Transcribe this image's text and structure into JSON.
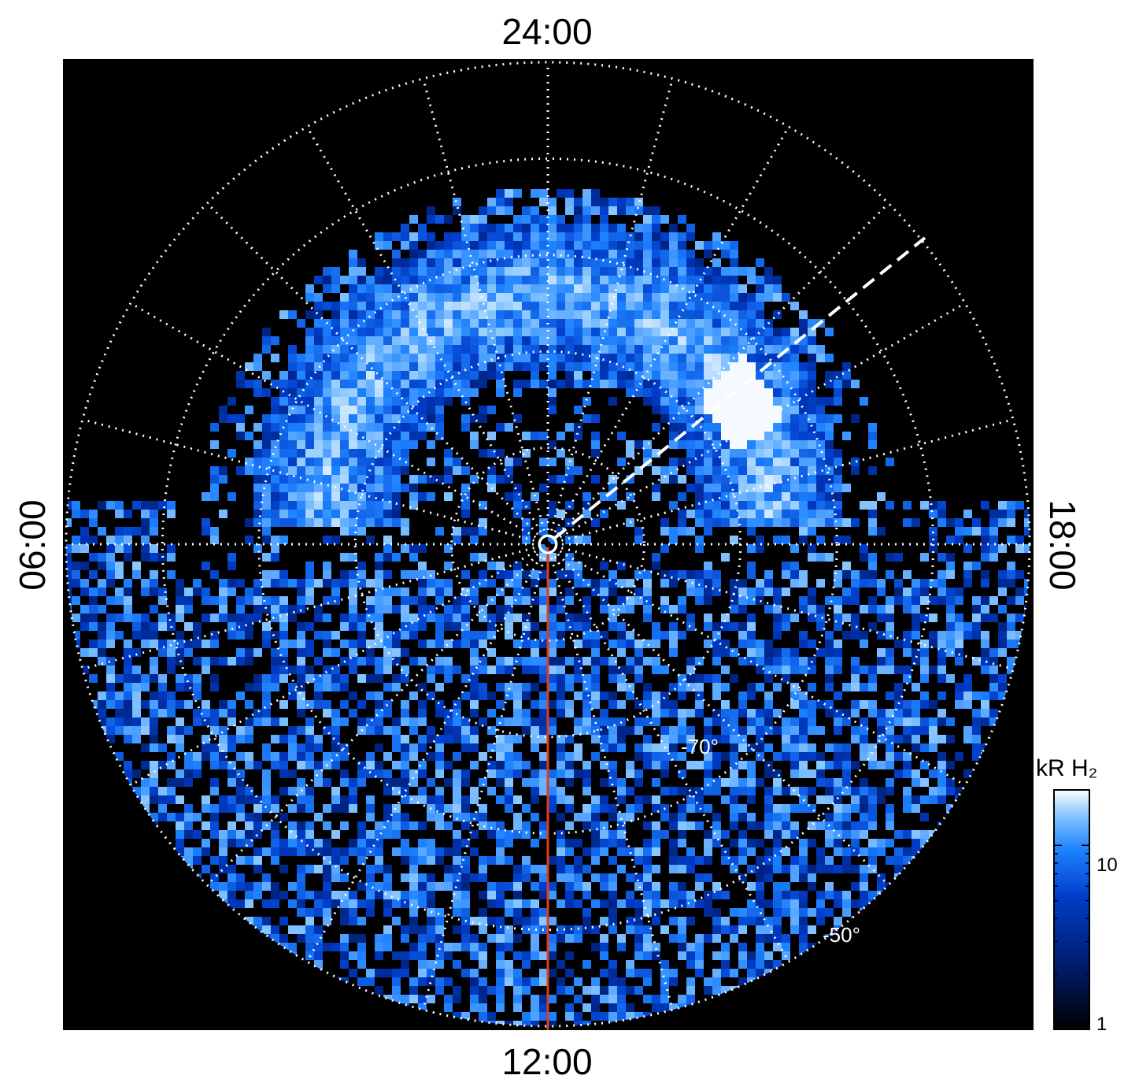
{
  "chart_data": {
    "type": "heatmap",
    "projection": "polar",
    "title": "",
    "background_color": "#000000",
    "local_time_labels": {
      "top": "24:00",
      "bottom": "12:00",
      "left": "06:00",
      "right": "18:00"
    },
    "latitude_labels": [
      {
        "text": "-70°",
        "latitude": -70
      },
      {
        "text": "-50°",
        "latitude": -50
      }
    ],
    "latitude_circles": [
      -80,
      -70,
      -60,
      -50,
      -40
    ],
    "local_time_meridian_step_hours": 1,
    "grid": "dotted white",
    "colorbar": {
      "title": "kR H₂",
      "scale": "log",
      "range": [
        1,
        20
      ],
      "ticks": [
        {
          "value": 1,
          "label": "1"
        },
        {
          "value": 10,
          "label": "10"
        }
      ],
      "colors": [
        "#000000",
        "#001a66",
        "#003cc8",
        "#1e82ff",
        "#8cc8ff",
        "#ffffff"
      ]
    },
    "annotations": [
      {
        "type": "line",
        "color": "#e03c1e",
        "from_local_time": "pole",
        "to_local_time": "12:00",
        "style": "solid"
      },
      {
        "type": "line",
        "color": "#ffffff",
        "along_local_time": "~20:30",
        "style": "dashed"
      },
      {
        "type": "marker",
        "shape": "circle",
        "color": "#ffffff",
        "at": "pole"
      }
    ],
    "auroral_oval": {
      "description_not_shown": false,
      "peak_brightness_kR": 20
    }
  }
}
